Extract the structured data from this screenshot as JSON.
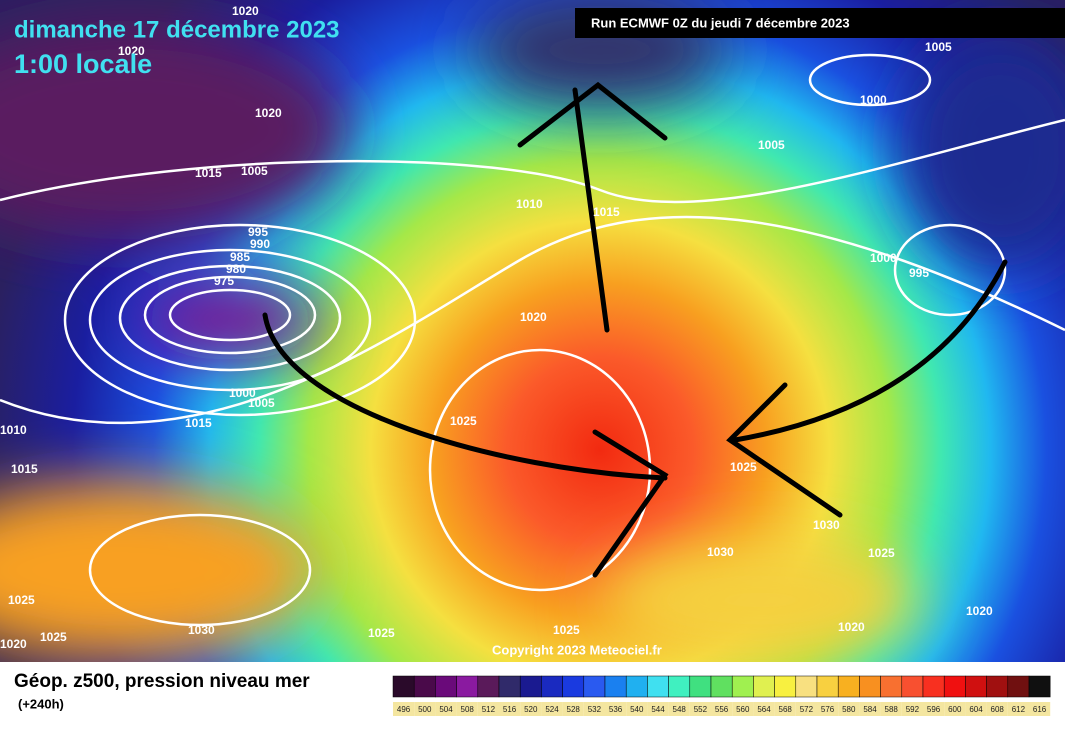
{
  "header": {
    "title": "dimanche 17 décembre 2023",
    "subtitle": "1:00 locale",
    "run": "Run ECMWF 0Z du jeudi 7 décembre 2023"
  },
  "isobars": [
    "1020",
    "1020",
    "1020",
    "1015",
    "1005",
    "995",
    "990",
    "985",
    "980",
    "975",
    "1010",
    "1015",
    "1020",
    "1000",
    "1005",
    "1015",
    "1010",
    "1015",
    "1025",
    "1025",
    "1025",
    "1030",
    "1025",
    "1025",
    "1020",
    "1030",
    "1030",
    "1025",
    "1020",
    "1020",
    "1005",
    "1000",
    "1005",
    "1000",
    "995",
    "1025"
  ],
  "copyright": "Copyright 2023 Meteociel.fr",
  "footer": {
    "title": "Géop. z500, pression niveau mer",
    "lead": "(+240h)"
  },
  "scale": [
    "496",
    "500",
    "504",
    "508",
    "512",
    "516",
    "520",
    "524",
    "528",
    "532",
    "536",
    "540",
    "544",
    "548",
    "552",
    "556",
    "560",
    "564",
    "568",
    "572",
    "576",
    "580",
    "584",
    "588",
    "592",
    "596",
    "600",
    "604",
    "608",
    "612",
    "616"
  ]
}
